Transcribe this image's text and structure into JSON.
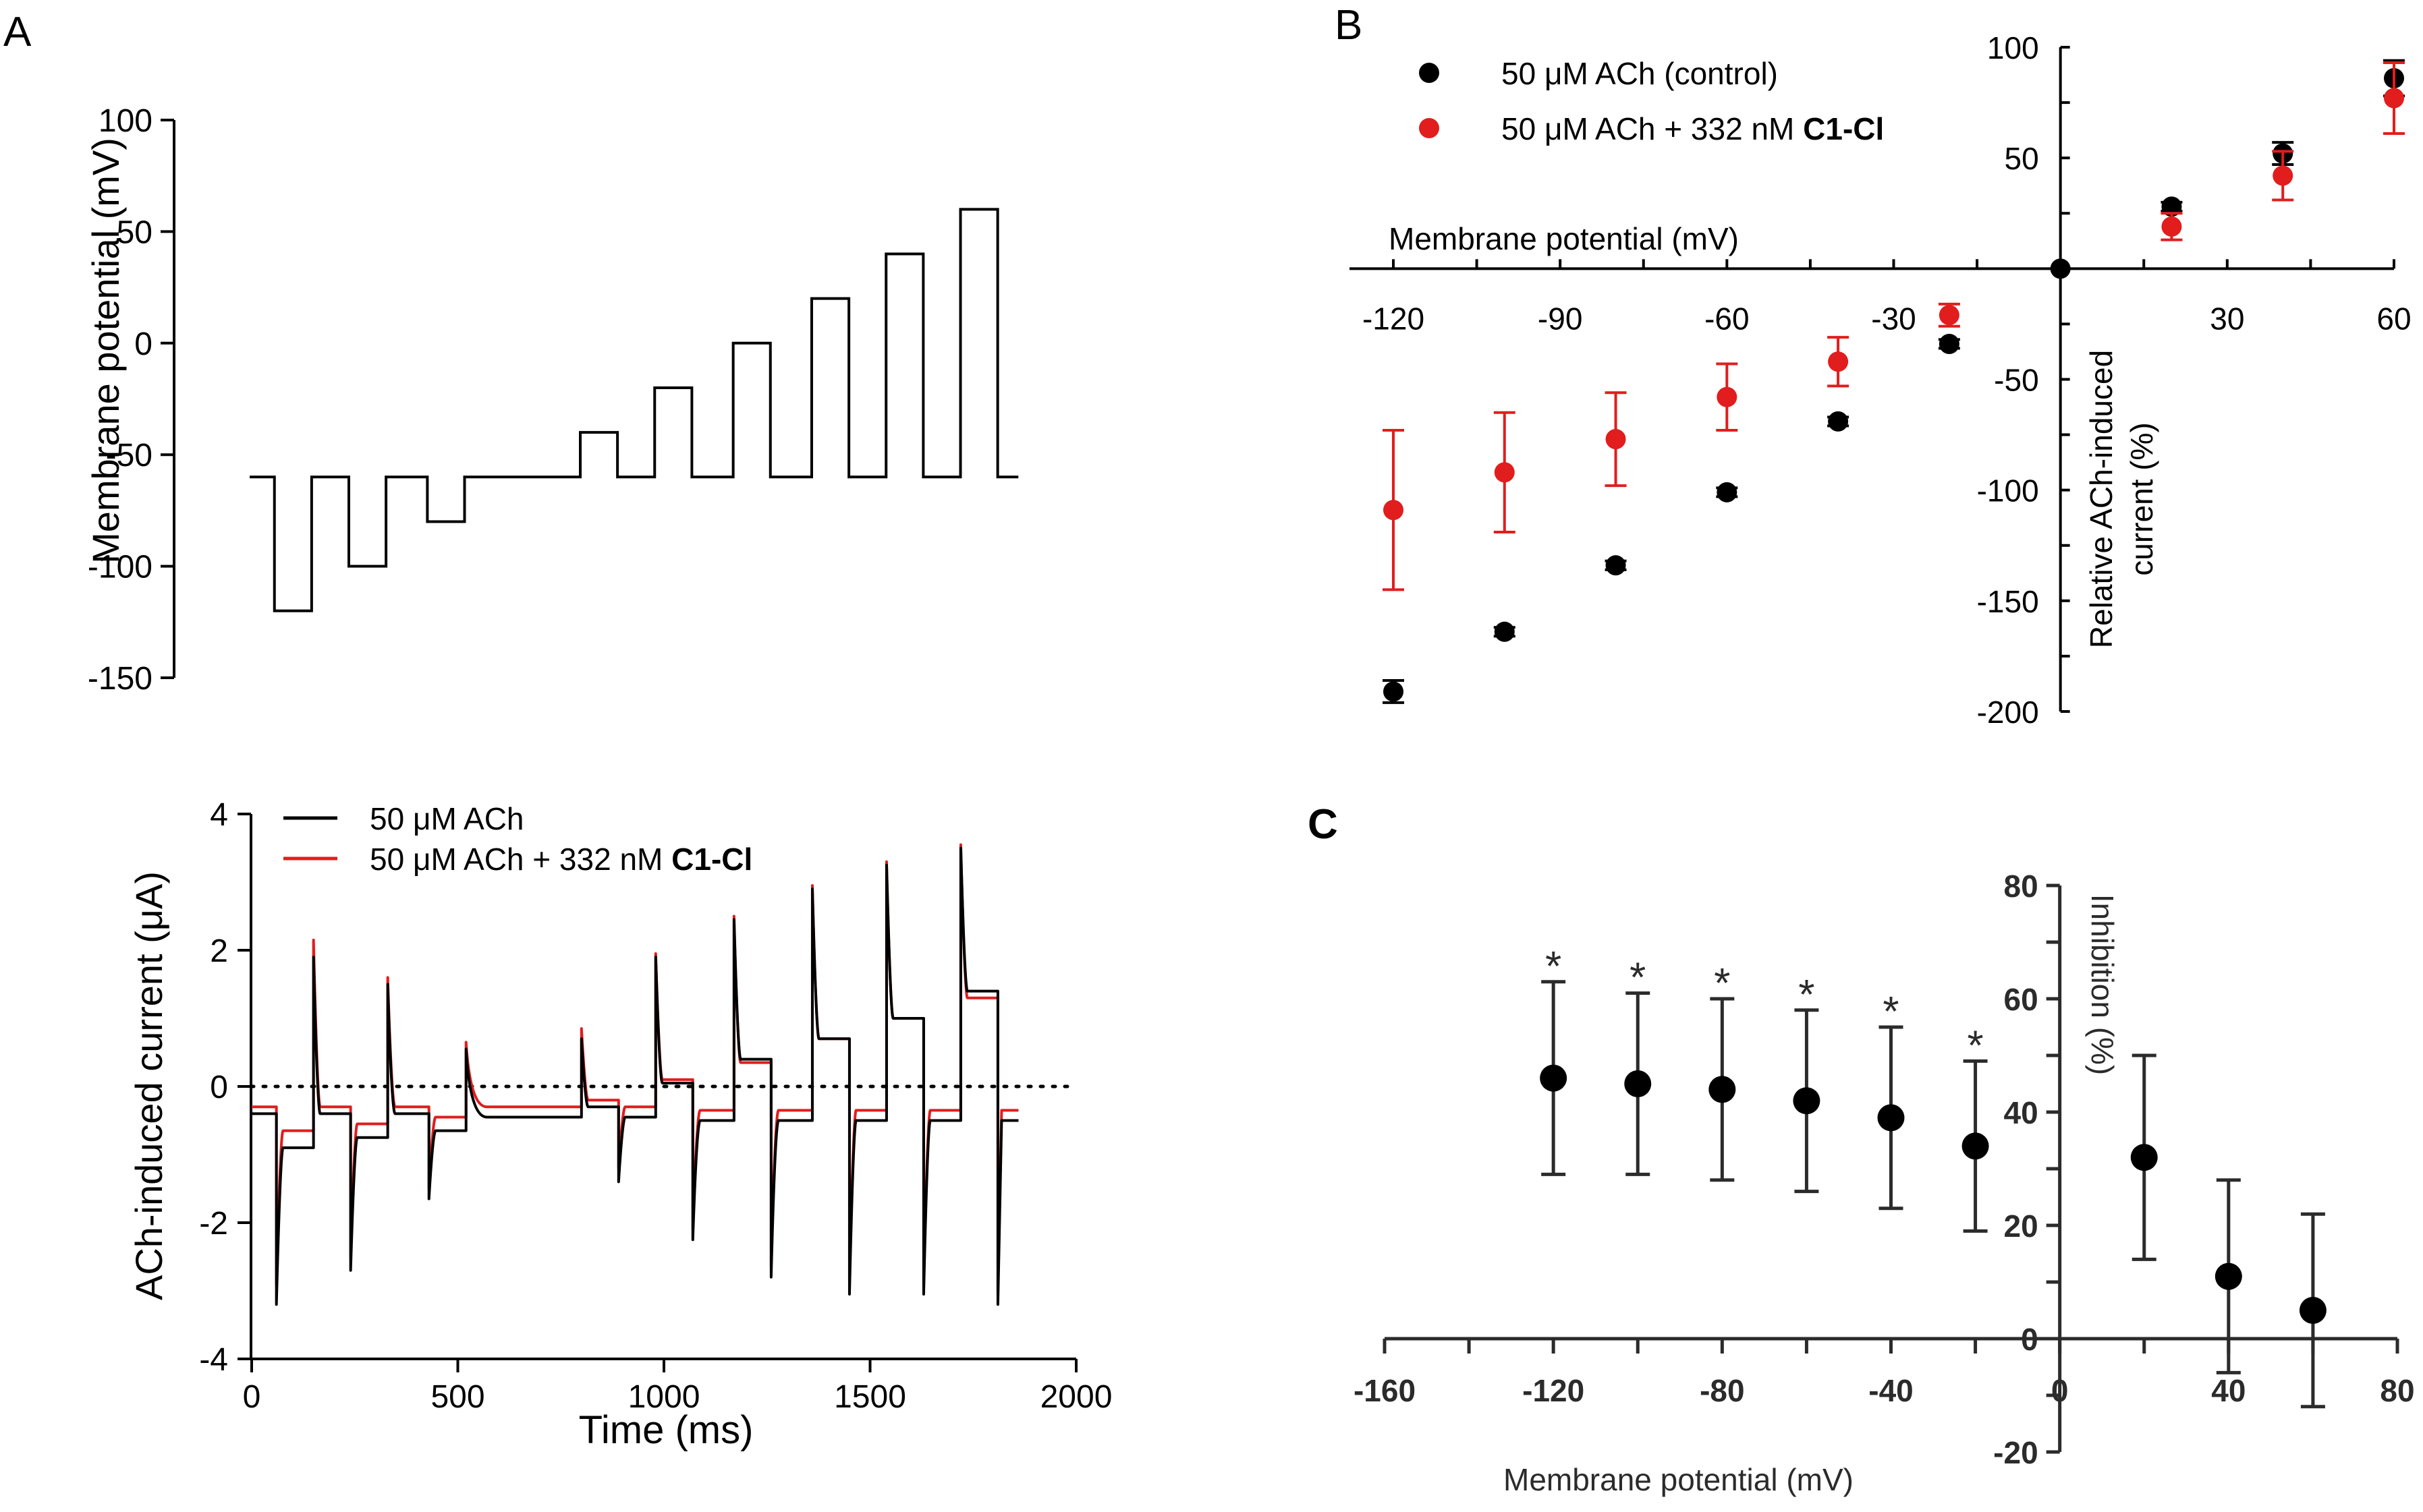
{
  "colors": {
    "black": "#000000",
    "red": "#e11d1d",
    "panelC": "#2b2b2b",
    "dotted": "#000000"
  },
  "chart_data": [
    {
      "panel": "A",
      "type": "line",
      "ylabel": "Membrane potential (mV)",
      "ylim": [
        -150,
        100
      ],
      "yticks": [
        100,
        50,
        0,
        -50,
        -100,
        -150
      ],
      "xlim": [
        0,
        1900
      ],
      "steps": [
        {
          "t0": 0,
          "t1": 60,
          "v": -60
        },
        {
          "t0": 60,
          "t1": 150,
          "v": -120
        },
        {
          "t0": 150,
          "t1": 240,
          "v": -60
        },
        {
          "t0": 240,
          "t1": 330,
          "v": -100
        },
        {
          "t0": 330,
          "t1": 430,
          "v": -60
        },
        {
          "t0": 430,
          "t1": 520,
          "v": -80
        },
        {
          "t0": 520,
          "t1": 800,
          "v": -60
        },
        {
          "t0": 800,
          "t1": 890,
          "v": -40
        },
        {
          "t0": 890,
          "t1": 980,
          "v": -60
        },
        {
          "t0": 980,
          "t1": 1070,
          "v": -20
        },
        {
          "t0": 1070,
          "t1": 1170,
          "v": -60
        },
        {
          "t0": 1170,
          "t1": 1260,
          "v": 0
        },
        {
          "t0": 1260,
          "t1": 1360,
          "v": -60
        },
        {
          "t0": 1360,
          "t1": 1450,
          "v": 20
        },
        {
          "t0": 1450,
          "t1": 1540,
          "v": -60
        },
        {
          "t0": 1540,
          "t1": 1630,
          "v": 40
        },
        {
          "t0": 1630,
          "t1": 1720,
          "v": -60
        },
        {
          "t0": 1720,
          "t1": 1810,
          "v": 60
        },
        {
          "t0": 1810,
          "t1": 1860,
          "v": -60
        }
      ]
    },
    {
      "panel": "A-lower",
      "type": "line",
      "xlabel": "Time (ms)",
      "ylabel": "ACh-induced current (μA)",
      "xlim": [
        0,
        2000
      ],
      "xticks": [
        0,
        500,
        1000,
        1500,
        2000
      ],
      "ylim": [
        -4,
        4
      ],
      "yticks": [
        4,
        2,
        0,
        -2,
        -4
      ],
      "zero_line": "dotted",
      "series": [
        {
          "name": "50 μM ACh",
          "color": "#000000",
          "segments": [
            {
              "t0": 0,
              "t1": 60,
              "v": -0.4,
              "spike": 0
            },
            {
              "t0": 60,
              "t1": 150,
              "v": -0.9,
              "spike": -3.2
            },
            {
              "t0": 150,
              "t1": 240,
              "v": -0.4,
              "spike": 1.9
            },
            {
              "t0": 240,
              "t1": 330,
              "v": -0.75,
              "spike": -2.7
            },
            {
              "t0": 330,
              "t1": 430,
              "v": -0.4,
              "spike": 1.5
            },
            {
              "t0": 430,
              "t1": 520,
              "v": -0.65,
              "spike": -1.65
            },
            {
              "t0": 520,
              "t1": 800,
              "v": -0.45,
              "spike": 0.55
            },
            {
              "t0": 800,
              "t1": 890,
              "v": -0.3,
              "spike": 0.7
            },
            {
              "t0": 890,
              "t1": 980,
              "v": -0.45,
              "spike": -1.4
            },
            {
              "t0": 980,
              "t1": 1070,
              "v": 0.05,
              "spike": 1.9
            },
            {
              "t0": 1070,
              "t1": 1170,
              "v": -0.5,
              "spike": -2.25
            },
            {
              "t0": 1170,
              "t1": 1260,
              "v": 0.4,
              "spike": 2.45
            },
            {
              "t0": 1260,
              "t1": 1360,
              "v": -0.5,
              "spike": -2.8
            },
            {
              "t0": 1360,
              "t1": 1450,
              "v": 0.7,
              "spike": 2.9
            },
            {
              "t0": 1450,
              "t1": 1540,
              "v": -0.5,
              "spike": -3.05
            },
            {
              "t0": 1540,
              "t1": 1630,
              "v": 1.0,
              "spike": 3.25
            },
            {
              "t0": 1630,
              "t1": 1720,
              "v": -0.5,
              "spike": -3.05
            },
            {
              "t0": 1720,
              "t1": 1810,
              "v": 1.4,
              "spike": 3.5
            },
            {
              "t0": 1810,
              "t1": 1860,
              "v": -0.5,
              "spike": -3.2
            }
          ]
        },
        {
          "name": "50 μM ACh + 332 nM C1-Cl",
          "color": "#e11d1d",
          "segments": [
            {
              "t0": 0,
              "t1": 60,
              "v": -0.3,
              "spike": 0
            },
            {
              "t0": 60,
              "t1": 150,
              "v": -0.65,
              "spike": -2.9
            },
            {
              "t0": 150,
              "t1": 240,
              "v": -0.3,
              "spike": 2.15
            },
            {
              "t0": 240,
              "t1": 330,
              "v": -0.55,
              "spike": -2.5
            },
            {
              "t0": 330,
              "t1": 430,
              "v": -0.3,
              "spike": 1.6
            },
            {
              "t0": 430,
              "t1": 520,
              "v": -0.45,
              "spike": -1.5
            },
            {
              "t0": 520,
              "t1": 800,
              "v": -0.3,
              "spike": 0.65
            },
            {
              "t0": 800,
              "t1": 890,
              "v": -0.2,
              "spike": 0.85
            },
            {
              "t0": 890,
              "t1": 980,
              "v": -0.3,
              "spike": -1.2
            },
            {
              "t0": 980,
              "t1": 1070,
              "v": 0.1,
              "spike": 1.95
            },
            {
              "t0": 1070,
              "t1": 1170,
              "v": -0.35,
              "spike": -2.1
            },
            {
              "t0": 1170,
              "t1": 1260,
              "v": 0.35,
              "spike": 2.5
            },
            {
              "t0": 1260,
              "t1": 1360,
              "v": -0.35,
              "spike": -2.65
            },
            {
              "t0": 1360,
              "t1": 1450,
              "v": 0.7,
              "spike": 2.95
            },
            {
              "t0": 1450,
              "t1": 1540,
              "v": -0.35,
              "spike": -2.85
            },
            {
              "t0": 1540,
              "t1": 1630,
              "v": 1.0,
              "spike": 3.3
            },
            {
              "t0": 1630,
              "t1": 1720,
              "v": -0.35,
              "spike": -2.9
            },
            {
              "t0": 1720,
              "t1": 1810,
              "v": 1.3,
              "spike": 3.55
            },
            {
              "t0": 1810,
              "t1": 1860,
              "v": -0.35,
              "spike": -3.0
            }
          ]
        }
      ]
    },
    {
      "panel": "B",
      "type": "scatter",
      "xlabel": "Membrane potential (mV)",
      "ylabel": "Relative ACh-induced current (%)",
      "xlim": [
        -130,
        60
      ],
      "xticks": [
        -120,
        -90,
        -60,
        -30,
        30,
        60
      ],
      "ylim": [
        -200,
        100
      ],
      "yticks": [
        100,
        50,
        -50,
        -100,
        -150,
        -200
      ],
      "legend": "top-left",
      "series": [
        {
          "name": "50 μM ACh (control)",
          "color": "#000000",
          "points": [
            {
              "x": -120,
              "y": -191,
              "err": 5
            },
            {
              "x": -100,
              "y": -164,
              "err": 2
            },
            {
              "x": -80,
              "y": -134,
              "err": 2
            },
            {
              "x": -60,
              "y": -101,
              "err": 2
            },
            {
              "x": -40,
              "y": -69,
              "err": 2
            },
            {
              "x": -20,
              "y": -34,
              "err": 2
            },
            {
              "x": 0,
              "y": 0,
              "err": 0
            },
            {
              "x": 20,
              "y": 28,
              "err": 2
            },
            {
              "x": 40,
              "y": 52,
              "err": 5
            },
            {
              "x": 60,
              "y": 86,
              "err": 8
            }
          ]
        },
        {
          "name": "50 μM ACh + 332 nM C1-Cl",
          "color": "#e11d1d",
          "points": [
            {
              "x": -120,
              "y": -109,
              "err": 36
            },
            {
              "x": -100,
              "y": -92,
              "err": 27
            },
            {
              "x": -80,
              "y": -77,
              "err": 21
            },
            {
              "x": -60,
              "y": -58,
              "err": 15
            },
            {
              "x": -40,
              "y": -42,
              "err": 11
            },
            {
              "x": -20,
              "y": -21,
              "err": 5
            },
            {
              "x": 20,
              "y": 19,
              "err": 6
            },
            {
              "x": 40,
              "y": 42,
              "err": 11
            },
            {
              "x": 60,
              "y": 77,
              "err": 16
            }
          ]
        }
      ]
    },
    {
      "panel": "C",
      "type": "scatter",
      "xlabel": "Membrane potential (mV)",
      "ylabel": "Inhibition (%)",
      "xlim": [
        -160,
        80
      ],
      "xticks": [
        -160,
        -120,
        -80,
        -40,
        0,
        40,
        80
      ],
      "ylim": [
        -20,
        80
      ],
      "yticks": [
        80,
        60,
        40,
        20,
        0,
        -20
      ],
      "series": [
        {
          "name": "",
          "color": "#000000",
          "points": [
            {
              "x": -120,
              "y": 46,
              "err": 17,
              "sig": "*"
            },
            {
              "x": -100,
              "y": 45,
              "err": 16,
              "sig": "*"
            },
            {
              "x": -80,
              "y": 44,
              "err": 16,
              "sig": "*"
            },
            {
              "x": -60,
              "y": 42,
              "err": 16,
              "sig": "*"
            },
            {
              "x": -40,
              "y": 39,
              "err": 16,
              "sig": "*"
            },
            {
              "x": -20,
              "y": 34,
              "err": 15,
              "sig": "*"
            },
            {
              "x": 20,
              "y": 32,
              "err": 18,
              "sig": ""
            },
            {
              "x": 40,
              "y": 11,
              "err": 17,
              "sig": ""
            },
            {
              "x": 60,
              "y": 5,
              "err": 17,
              "sig": ""
            }
          ]
        }
      ]
    }
  ],
  "labels": {
    "panelA": "A",
    "panelB": "B",
    "panelC": "C",
    "legendA1": "50 μM ACh",
    "legendA2_prefix": "50 μM ACh + 332 nM ",
    "legendA2_bold": "C1-Cl",
    "legendB1": "50 μM ACh (control)",
    "legendB2_prefix": "50 μM ACh + 332 nM ",
    "legendB2_bold": "C1-Cl",
    "ylabelA_top": "Membrane potential (mV)",
    "ylabelA_bottom": "ACh-induced current (μA)",
    "xlabelA_bottom": "Time (ms)",
    "xlabelB": "Membrane potential (mV)",
    "ylabelB_line1": "Relative ACh-induced",
    "ylabelB_line2": "current (%)",
    "xlabelC": "Membrane potential (mV)",
    "ylabelC": "Inhibition (%)"
  }
}
